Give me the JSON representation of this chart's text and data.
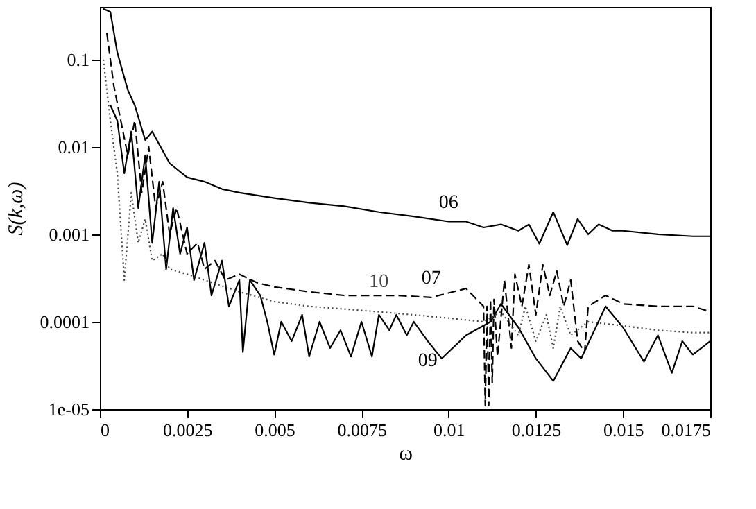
{
  "chart_data": {
    "type": "line",
    "xlabel": "ω",
    "ylabel": "S(k,ω)",
    "log": "y",
    "grid": false,
    "marker": "none",
    "xlim": [
      0,
      0.0175
    ],
    "xticks": [
      0,
      0.0025,
      0.005,
      0.0075,
      0.01,
      0.0125,
      0.015,
      0.0175
    ],
    "ylim": [
      1e-05,
      0.4
    ],
    "yticks": [
      {
        "value": 1e-05,
        "label": "1e-05"
      },
      0.0001,
      0.001,
      0.01,
      0.1
    ],
    "series": [
      {
        "name": "06",
        "color": "#000000",
        "line_style": "solid",
        "x": [
          0.0001,
          0.0003,
          0.0005,
          0.0008,
          0.001,
          0.0013,
          0.0015,
          0.002,
          0.0025,
          0.003,
          0.0035,
          0.004,
          0.005,
          0.006,
          0.007,
          0.008,
          0.009,
          0.01,
          0.0105,
          0.011,
          0.0115,
          0.012,
          0.0123,
          0.0126,
          0.013,
          0.0134,
          0.0137,
          0.014,
          0.0143,
          0.0147,
          0.015,
          0.016,
          0.017,
          0.0175
        ],
        "values": [
          0.38,
          0.35,
          0.12,
          0.045,
          0.03,
          0.012,
          0.015,
          0.0065,
          0.0045,
          0.004,
          0.0033,
          0.003,
          0.0026,
          0.0023,
          0.0021,
          0.0018,
          0.0016,
          0.0014,
          0.0014,
          0.0012,
          0.0013,
          0.0011,
          0.0013,
          0.00078,
          0.0018,
          0.00075,
          0.0015,
          0.001,
          0.0013,
          0.0011,
          0.0011,
          0.001,
          0.00095,
          0.00095
        ]
      },
      {
        "name": "07",
        "color": "#000000",
        "line_style": "dashed",
        "x": [
          0.0002,
          0.0004,
          0.0006,
          0.0008,
          0.001,
          0.0012,
          0.0014,
          0.0016,
          0.0018,
          0.002,
          0.0022,
          0.0025,
          0.0028,
          0.003,
          0.0033,
          0.0036,
          0.004,
          0.0045,
          0.005,
          0.006,
          0.007,
          0.0075,
          0.0085,
          0.0095,
          0.0105,
          0.011,
          0.01105,
          0.0111,
          0.01115,
          0.0112,
          0.01125,
          0.0113,
          0.0114,
          0.0116,
          0.0118,
          0.0119,
          0.0121,
          0.0123,
          0.0125,
          0.0127,
          0.0129,
          0.0131,
          0.0133,
          0.0135,
          0.0137,
          0.0139,
          0.014,
          0.0145,
          0.015,
          0.016,
          0.017,
          0.0175
        ],
        "values": [
          0.2,
          0.05,
          0.02,
          0.008,
          0.02,
          0.003,
          0.01,
          0.002,
          0.004,
          0.001,
          0.002,
          0.0006,
          0.0008,
          0.0004,
          0.0005,
          0.0003,
          0.00035,
          0.00028,
          0.00025,
          0.00022,
          0.0002,
          0.0002,
          0.0002,
          0.00019,
          0.00024,
          0.00015,
          1.1e-05,
          0.00015,
          1.1e-05,
          0.00018,
          2e-05,
          0.00018,
          4e-05,
          0.0003,
          5e-05,
          0.00035,
          0.00015,
          0.00045,
          0.00012,
          0.00045,
          0.0002,
          0.00038,
          0.00015,
          0.0003,
          6e-05,
          4.5e-05,
          0.00015,
          0.0002,
          0.00016,
          0.00015,
          0.00015,
          0.00013
        ]
      },
      {
        "name": "09",
        "color": "#000000",
        "line_style": "solid",
        "x": [
          0.0003,
          0.0005,
          0.0007,
          0.0009,
          0.0011,
          0.0013,
          0.0015,
          0.0017,
          0.0019,
          0.0021,
          0.0023,
          0.0025,
          0.0027,
          0.003,
          0.0032,
          0.0035,
          0.0037,
          0.004,
          0.0041,
          0.0043,
          0.0046,
          0.0048,
          0.005,
          0.0052,
          0.0055,
          0.0058,
          0.006,
          0.0063,
          0.0066,
          0.0069,
          0.0072,
          0.0075,
          0.0078,
          0.008,
          0.0083,
          0.0085,
          0.0088,
          0.009,
          0.0094,
          0.0098,
          0.0105,
          0.0112,
          0.0115,
          0.012,
          0.0125,
          0.013,
          0.0135,
          0.0138,
          0.0145,
          0.015,
          0.0156,
          0.016,
          0.0164,
          0.0167,
          0.017,
          0.0175
        ],
        "values": [
          0.03,
          0.02,
          0.005,
          0.015,
          0.002,
          0.008,
          0.0008,
          0.004,
          0.0004,
          0.002,
          0.0006,
          0.0012,
          0.0003,
          0.0008,
          0.0002,
          0.0005,
          0.00015,
          0.0003,
          4.5e-05,
          0.0003,
          0.0002,
          0.0001,
          4.2e-05,
          0.0001,
          6e-05,
          0.00012,
          4e-05,
          0.0001,
          5e-05,
          8e-05,
          4e-05,
          0.0001,
          4e-05,
          0.00012,
          8e-05,
          0.00012,
          7e-05,
          0.0001,
          6e-05,
          3.8e-05,
          7e-05,
          0.0001,
          0.00016,
          8.6e-05,
          3.8e-05,
          2.1e-05,
          5e-05,
          3.8e-05,
          0.00015,
          8.6e-05,
          3.5e-05,
          7e-05,
          2.6e-05,
          6e-05,
          4.2e-05,
          6e-05
        ]
      },
      {
        "name": "10",
        "color": "#444444",
        "line_style": "dotted",
        "x": [
          0.0001,
          0.0003,
          0.0005,
          0.0007,
          0.0009,
          0.0011,
          0.0013,
          0.0015,
          0.0018,
          0.002,
          0.0025,
          0.003,
          0.004,
          0.005,
          0.006,
          0.007,
          0.008,
          0.009,
          0.01,
          0.011,
          0.0115,
          0.012,
          0.0122,
          0.0125,
          0.0128,
          0.013,
          0.0132,
          0.0135,
          0.014,
          0.015,
          0.016,
          0.017,
          0.0175
        ],
        "values": [
          0.1,
          0.02,
          0.005,
          0.0003,
          0.003,
          0.0008,
          0.0015,
          0.0005,
          0.0006,
          0.0004,
          0.00035,
          0.0003,
          0.00022,
          0.00017,
          0.00015,
          0.00014,
          0.00013,
          0.00012,
          0.00011,
          0.0001,
          0.00013,
          7e-05,
          0.00015,
          6e-05,
          0.00012,
          5e-05,
          0.00015,
          7e-05,
          0.0001,
          9e-05,
          8e-05,
          7.5e-05,
          7.5e-05
        ]
      }
    ]
  }
}
